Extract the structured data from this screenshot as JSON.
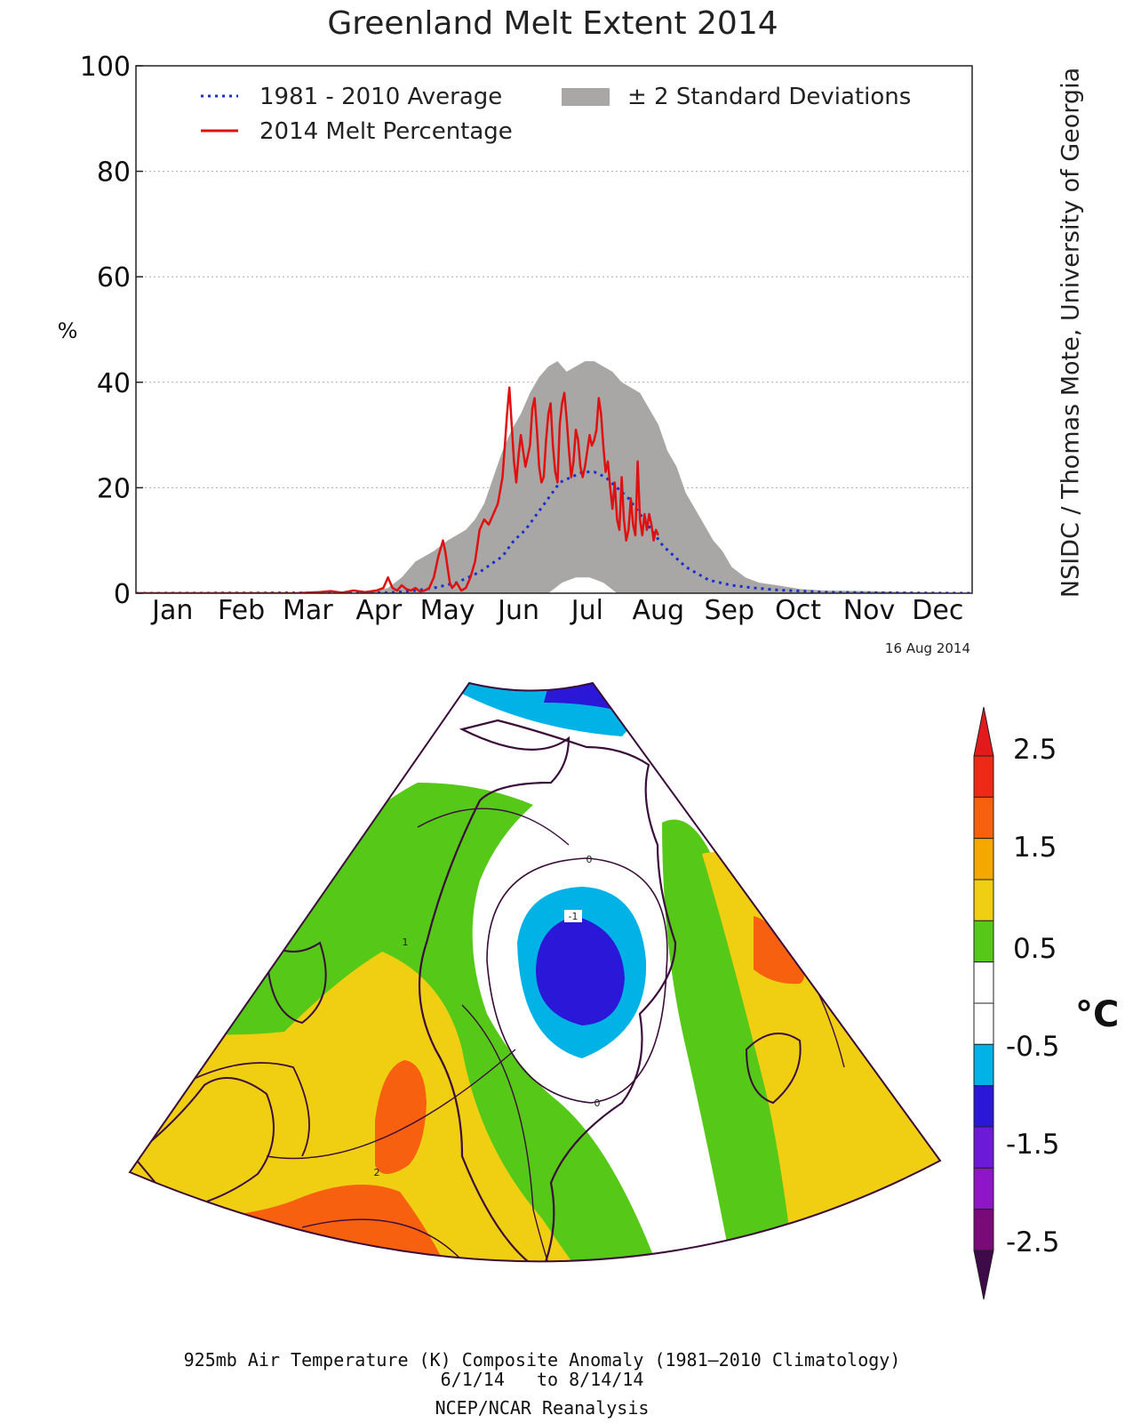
{
  "chart_data": [
    {
      "type": "line",
      "title": "Greenland Melt Extent 2014",
      "xlabel": "",
      "ylabel": "%",
      "ylim": [
        0,
        100
      ],
      "xlim": [
        0,
        365
      ],
      "yticks": [
        0,
        20,
        40,
        60,
        80,
        100
      ],
      "month_labels": [
        "Jan",
        "Feb",
        "Mar",
        "Apr",
        "May",
        "Jun",
        "Jul",
        "Aug",
        "Sep",
        "Oct",
        "Nov",
        "Dec"
      ],
      "month_centers_doy": [
        16,
        46,
        75,
        106,
        136,
        167,
        197,
        228,
        259,
        289,
        320,
        350
      ],
      "grid": true,
      "legend": {
        "position": "top",
        "entries": [
          {
            "label": "1981 - 2010 Average",
            "style": "dotted",
            "color": "#1b2fd0"
          },
          {
            "label": "2014 Melt Percentage",
            "style": "solid",
            "color": "#e01010"
          },
          {
            "label": "± 2 Standard Deviations",
            "style": "band",
            "color": "#a9a7a6"
          }
        ]
      },
      "band_upper": {
        "doy": [
          0,
          100,
          110,
          116,
          122,
          130,
          136,
          140,
          144,
          148,
          152,
          156,
          160,
          164,
          168,
          172,
          176,
          180,
          184,
          188,
          192,
          196,
          200,
          204,
          208,
          212,
          216,
          220,
          224,
          228,
          232,
          236,
          240,
          244,
          248,
          252,
          256,
          260,
          266,
          272,
          280,
          290,
          300,
          320,
          340,
          365
        ],
        "values": [
          0,
          0,
          1,
          3,
          6,
          8,
          10,
          11,
          12,
          14,
          17,
          22,
          27,
          31,
          34,
          38,
          41,
          43,
          44,
          42,
          43,
          44,
          44,
          43,
          42,
          40,
          39,
          38,
          35,
          32,
          27,
          24,
          19,
          16,
          13,
          10,
          8,
          5,
          3,
          2,
          1.5,
          0.8,
          0.5,
          0.4,
          0.2,
          0
        ]
      },
      "band_lower": {
        "doy": [
          0,
          150,
          166,
          172,
          180,
          186,
          192,
          198,
          204,
          210,
          365
        ],
        "values": [
          0,
          0,
          0,
          0,
          0,
          2,
          3,
          3,
          2,
          0,
          0
        ]
      },
      "series": [
        {
          "name": "1981 - 2010 Average",
          "doy": [
            0,
            110,
            120,
            130,
            140,
            150,
            160,
            165,
            170,
            175,
            180,
            185,
            190,
            195,
            200,
            205,
            210,
            215,
            220,
            225,
            230,
            235,
            240,
            250,
            260,
            270,
            280,
            290,
            300,
            320,
            340,
            365
          ],
          "values": [
            0,
            0.1,
            0.4,
            1,
            2,
            4,
            7,
            10,
            12,
            15,
            18,
            21,
            22,
            23,
            23,
            22,
            20,
            18,
            15,
            12,
            9,
            7,
            5,
            2.5,
            1.5,
            1,
            0.6,
            0.4,
            0.2,
            0.1,
            0.05,
            0
          ]
        },
        {
          "name": "2014 Melt Percentage",
          "doy": [
            0,
            70,
            80,
            85,
            90,
            95,
            100,
            105,
            108,
            110,
            112,
            114,
            116,
            118,
            120,
            122,
            124,
            126,
            128,
            130,
            132,
            134,
            135,
            136,
            137,
            138,
            140,
            142,
            144,
            146,
            148,
            150,
            152,
            154,
            156,
            158,
            160,
            161,
            162,
            163,
            164,
            165,
            166,
            167,
            168,
            169,
            170,
            171,
            172,
            173,
            174,
            175,
            176,
            177,
            178,
            179,
            180,
            181,
            182,
            183,
            184,
            185,
            186,
            187,
            188,
            189,
            190,
            191,
            192,
            193,
            194,
            195,
            196,
            197,
            198,
            199,
            200,
            201,
            202,
            203,
            204,
            205,
            206,
            207,
            208,
            209,
            210,
            211,
            212,
            213,
            214,
            215,
            216,
            217,
            218,
            219,
            220,
            221,
            222,
            223,
            224,
            225,
            226,
            227,
            228
          ],
          "values": [
            0,
            0,
            0.2,
            0.4,
            0.1,
            0.5,
            0.2,
            0.5,
            1,
            3,
            1,
            0.5,
            1.5,
            0.8,
            0.5,
            1,
            0.3,
            0.5,
            1,
            3,
            7,
            10,
            8,
            5,
            2,
            1,
            2,
            0.5,
            1,
            3,
            6,
            12,
            14,
            13,
            15,
            17,
            22,
            28,
            34,
            39,
            32,
            25,
            21,
            26,
            30,
            27,
            24,
            26,
            28,
            35,
            37,
            31,
            24,
            21,
            22,
            29,
            34,
            36,
            28,
            23,
            21,
            32,
            36,
            38,
            33,
            27,
            22,
            25,
            31,
            29,
            24,
            22,
            24,
            27,
            30,
            28,
            29,
            31,
            37,
            34,
            28,
            23,
            25,
            20,
            16,
            21,
            14,
            12,
            22,
            14,
            10,
            12,
            18,
            13,
            11,
            25,
            14,
            11,
            15,
            12,
            15,
            13,
            10,
            12,
            11
          ]
        }
      ],
      "date_stamp": "16 Aug 2014",
      "credit": "NSIDC / Thomas Mote, University of Georgia"
    },
    {
      "type": "heatmap",
      "title": "925mb Air Temperature (K) Composite Anomaly (1981–2010 Climatology)",
      "date_range": "6/1/14   to 8/14/14",
      "source": "NCEP/NCAR Reanalysis",
      "unit": "°C",
      "colorbar_ticks": [
        "2.5",
        "1.5",
        "0.5",
        "-0.5",
        "-1.5",
        "-2.5"
      ],
      "colorbar_bins_top_to_bottom": [
        {
          "range": ">3",
          "color": "#e31a1c"
        },
        {
          "range": "2.5 to 3",
          "color": "#ee2a16"
        },
        {
          "range": "2 to 2.5",
          "color": "#f7600f"
        },
        {
          "range": "1.5 to 2",
          "color": "#f5a900"
        },
        {
          "range": "1 to 1.5",
          "color": "#f0ce12"
        },
        {
          "range": "0.5 to 1",
          "color": "#56c818"
        },
        {
          "range": "0 to 0.5",
          "color": "#ffffff"
        },
        {
          "range": "-0.5 to 0",
          "color": "#ffffff"
        },
        {
          "range": "-1 to -0.5",
          "color": "#00b2e6"
        },
        {
          "range": "-1.5 to -1",
          "color": "#2b17d8"
        },
        {
          "range": "-2 to -1.5",
          "color": "#6c19d8"
        },
        {
          "range": "-2.5 to -2",
          "color": "#8f16c8"
        },
        {
          "range": "-3 to -2.5",
          "color": "#7a0a78"
        },
        {
          "range": "<-3",
          "color": "#3f0a4a"
        }
      ],
      "contour_labels": [
        "0",
        "-1",
        "1",
        "2",
        "0"
      ]
    }
  ]
}
